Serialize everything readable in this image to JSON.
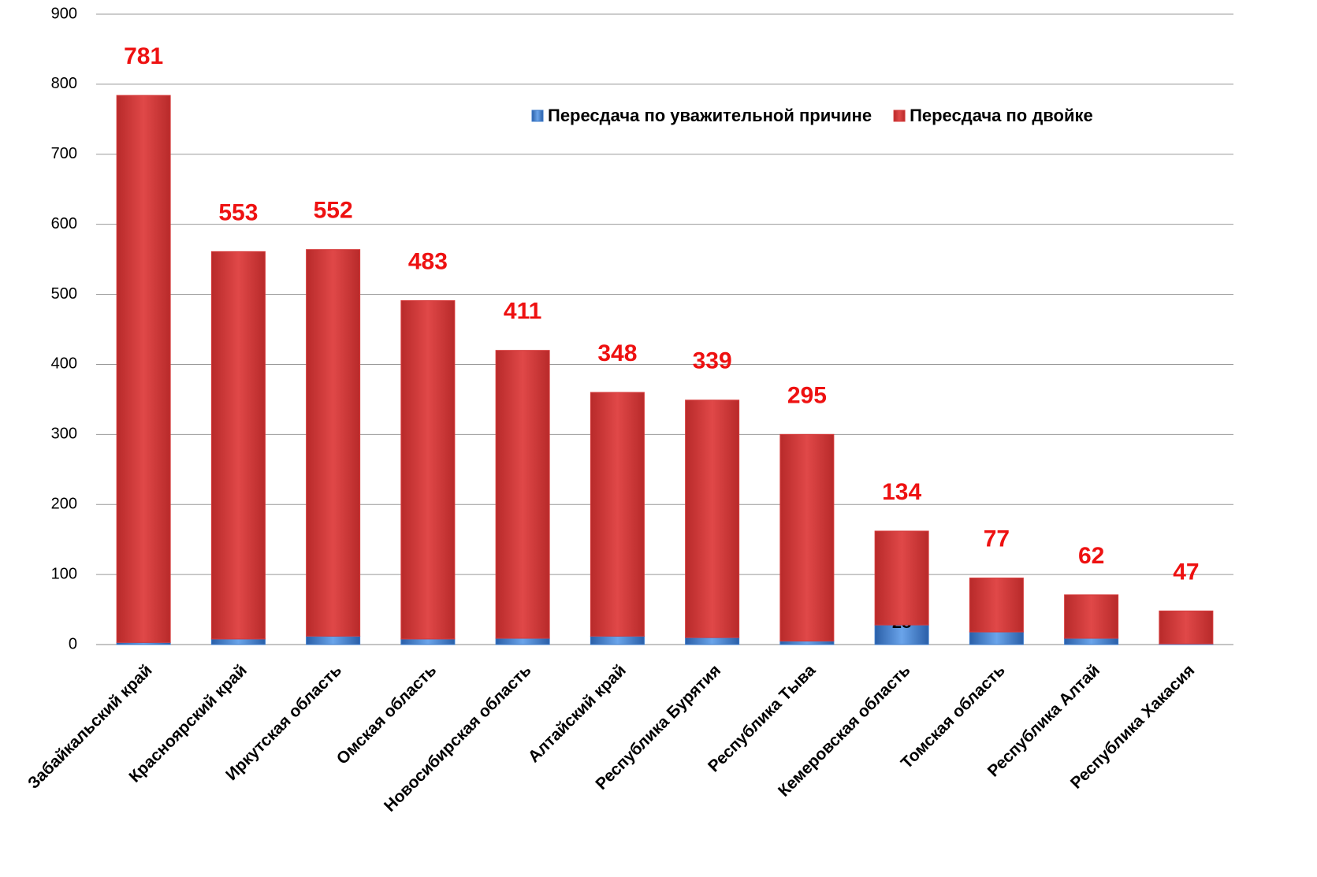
{
  "chart_data": {
    "type": "stacked_bar",
    "categories": [
      "Забайкальский край",
      "Красноярский край",
      "Иркутская область",
      "Омская область",
      "Новосибирская область",
      "Алтайский край",
      "Республика Бурятия",
      "Республика Тыва",
      "Кемеровская область",
      "Томская область",
      "Республика Алтай",
      "Республика Хакасия"
    ],
    "series": [
      {
        "name": "Пересдача по уважительной причине",
        "color": "#3a78c8",
        "values": [
          3,
          8,
          12,
          8,
          9,
          12,
          10,
          5,
          28,
          18,
          9,
          1
        ]
      },
      {
        "name": "Пересдача по двойке",
        "color": "#d63a3a",
        "values": [
          781,
          553,
          552,
          483,
          411,
          348,
          339,
          295,
          134,
          77,
          62,
          47
        ]
      }
    ],
    "ylim": [
      0,
      900
    ],
    "yticks": [
      0,
      100,
      200,
      300,
      400,
      500,
      600,
      700,
      800,
      900
    ],
    "grid": true,
    "legend": "top-right"
  }
}
